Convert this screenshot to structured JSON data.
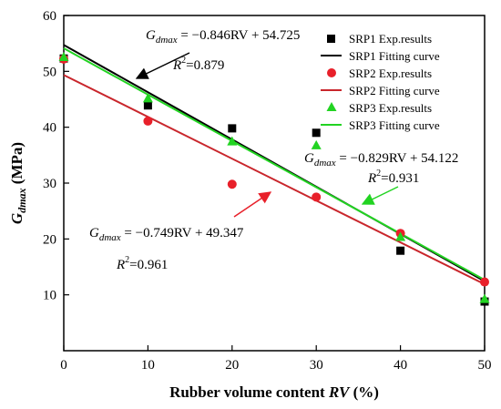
{
  "chart_data": {
    "type": "scatter",
    "title": "",
    "xlabel": {
      "text": "Rubber volume content ",
      "italic": "RV",
      "suffix": " (%)"
    },
    "ylabel": {
      "main": "G",
      "sub": "dmax",
      "suffix": " (MPa)"
    },
    "xlim": [
      0,
      50
    ],
    "ylim": [
      0,
      60
    ],
    "xticks": [
      0,
      10,
      20,
      30,
      40,
      50
    ],
    "yticks": [
      10,
      20,
      30,
      40,
      50,
      60
    ],
    "grid": false,
    "legend_position": "top-right",
    "series": [
      {
        "name": "SRP1 Exp.results",
        "kind": "points",
        "marker": "square",
        "color": "#000000",
        "x": [
          0,
          10,
          20,
          30,
          40,
          50
        ],
        "y": [
          52.3,
          43.9,
          39.8,
          39.0,
          17.9,
          8.8
        ]
      },
      {
        "name": "SRP1 Fitting curve",
        "kind": "line",
        "color": "#000000",
        "slope": -0.846,
        "intercept": 54.725
      },
      {
        "name": "SRP2 Exp.results",
        "kind": "points",
        "marker": "circle",
        "color": "#e8202a",
        "x": [
          0,
          10,
          20,
          30,
          40,
          50
        ],
        "y": [
          52.2,
          41.1,
          29.8,
          27.5,
          21.0,
          12.3
        ]
      },
      {
        "name": "SRP2 Fitting curve",
        "kind": "line",
        "color": "#c9262c",
        "slope": -0.749,
        "intercept": 49.347
      },
      {
        "name": "SRP3 Exp.results",
        "kind": "points",
        "marker": "triangle",
        "color": "#22d322",
        "x": [
          0,
          10,
          20,
          30,
          40,
          50
        ],
        "y": [
          52.5,
          45.1,
          37.4,
          36.7,
          20.3,
          9.2
        ]
      },
      {
        "name": "SRP3 Fitting curve",
        "kind": "line",
        "color": "#22d322",
        "slope": -0.829,
        "intercept": 54.122
      }
    ],
    "annotations": [
      {
        "id": "srp1",
        "lhs": "G",
        "lhs_sub": "dmax",
        "rhs": " = −0.846RV + 54.725",
        "r2_label": "R",
        "r2_value": "=0.879",
        "arrow_color": "#000000"
      },
      {
        "id": "srp3",
        "lhs": "G",
        "lhs_sub": "dmax",
        "rhs": " = −0.829RV + 54.122",
        "r2_label": "R",
        "r2_value": "=0.931",
        "arrow_color": "#22d322"
      },
      {
        "id": "srp2",
        "lhs": "G",
        "lhs_sub": "dmax",
        "rhs": " = −0.749RV + 49.347",
        "r2_label": "R",
        "r2_value": "=0.961",
        "arrow_color": "#e8202a"
      }
    ]
  }
}
